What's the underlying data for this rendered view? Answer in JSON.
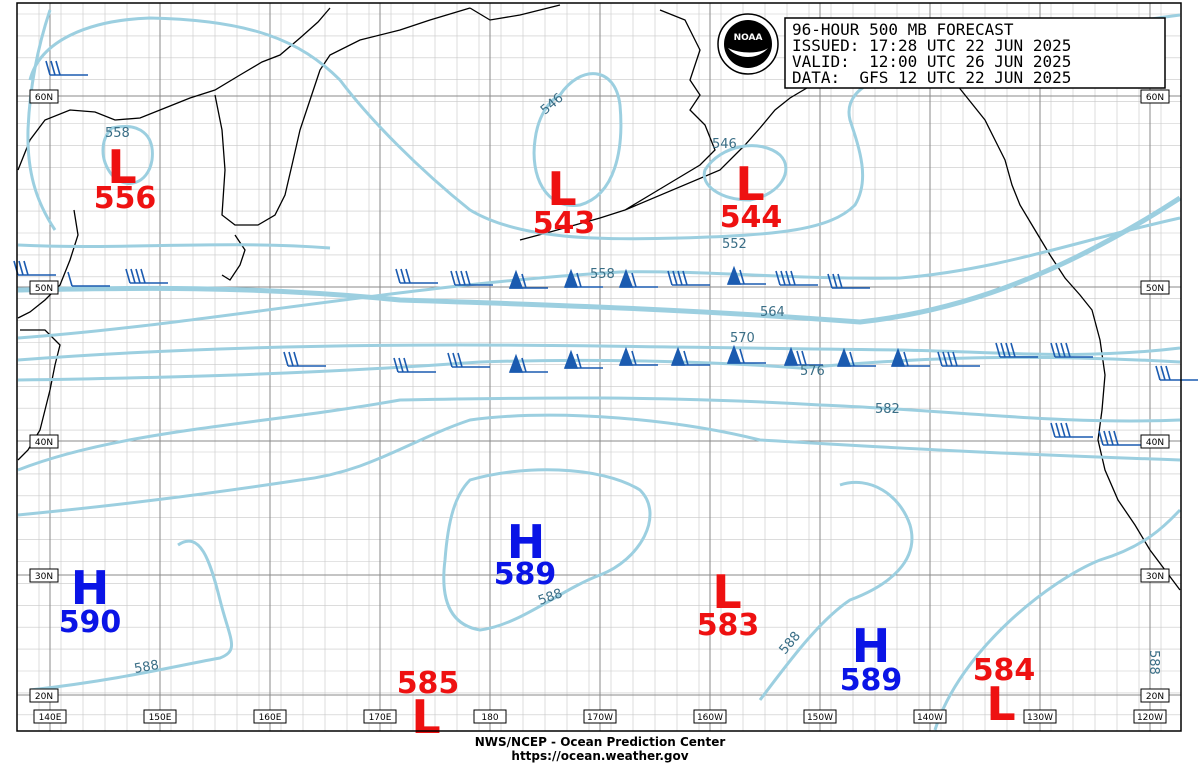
{
  "map": {
    "info_box": {
      "line1": "96-HOUR 500 MB FORECAST",
      "line2": "ISSUED: 17:28 UTC 22 JUN 2025",
      "line3": "VALID:  12:00 UTC 26 JUN 2025",
      "line4": "DATA:  GFS 12 UTC 22 JUN 2025"
    },
    "logo": {
      "text": "NOAA",
      "icon": "noaa-logo"
    },
    "footer": {
      "line1": "NWS/NCEP - Ocean Prediction Center",
      "line2": "https://ocean.weather.gov"
    },
    "lat_labels": [
      "60N",
      "50N",
      "40N",
      "30N",
      "20N"
    ],
    "lon_labels": [
      "140E",
      "150E",
      "160E",
      "170E",
      "180",
      "170W",
      "160W",
      "150W",
      "140W",
      "130W",
      "120W"
    ],
    "pressure_centers": [
      {
        "type": "L",
        "value": "556"
      },
      {
        "type": "L",
        "value": "543"
      },
      {
        "type": "L",
        "value": "544"
      },
      {
        "type": "H",
        "value": "590"
      },
      {
        "type": "H",
        "value": "589"
      },
      {
        "type": "L",
        "value": "583"
      },
      {
        "type": "H",
        "value": "589"
      },
      {
        "type": "L",
        "value": "585"
      },
      {
        "type": "L",
        "value": "584"
      }
    ],
    "contour_labels": [
      "558",
      "546",
      "546",
      "552",
      "558",
      "564",
      "570",
      "576",
      "582",
      "588",
      "588",
      "588",
      "588"
    ],
    "colors": {
      "high": "#0a14e6",
      "low": "#ee1111",
      "contour": "#9ccfe0",
      "contour_label": "#3a6e86",
      "barb": "#1b5bb0",
      "grid": "#8a8a8a",
      "coast": "#000000"
    }
  }
}
